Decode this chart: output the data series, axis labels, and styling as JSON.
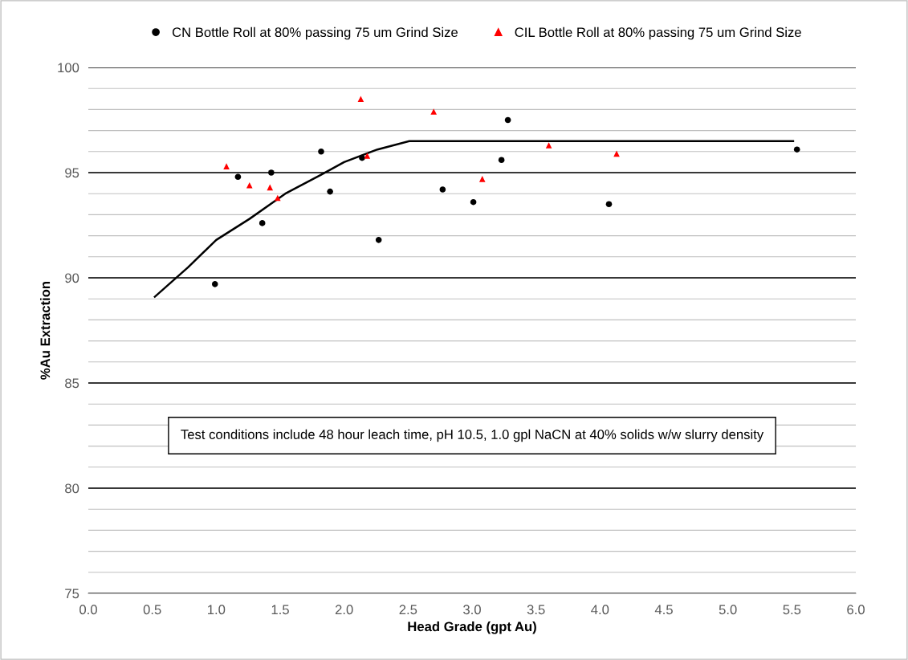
{
  "chart_data": {
    "type": "scatter",
    "xlabel": "Head Grade (gpt Au)",
    "ylabel": "%Au Extraction",
    "xlim": [
      0,
      6
    ],
    "xticks": [
      {
        "value": 0,
        "label": "0.0"
      },
      {
        "value": 0.5,
        "label": "0.5"
      },
      {
        "value": 1,
        "label": "1.0"
      },
      {
        "value": 1.5,
        "label": "1.5"
      },
      {
        "value": 2,
        "label": "2.0"
      },
      {
        "value": 2.5,
        "label": "2.5"
      },
      {
        "value": 3,
        "label": "3.0"
      },
      {
        "value": 3.5,
        "label": "3.5"
      },
      {
        "value": 4,
        "label": "4.0"
      },
      {
        "value": 4.5,
        "label": "4.5"
      },
      {
        "value": 5,
        "label": "5.0"
      },
      {
        "value": 5.5,
        "label": "5.5"
      },
      {
        "value": 6,
        "label": "6.0"
      }
    ],
    "ylim": [
      75,
      100
    ],
    "yticks": [
      75,
      80,
      85,
      90,
      95,
      100
    ],
    "grid": "y",
    "legend": "top",
    "series": [
      {
        "name": "CN Bottle Roll at 80% passing 75 um Grind Size",
        "marker": "circle",
        "color": "#000000",
        "x": [
          0.99,
          1.17,
          1.36,
          1.43,
          1.82,
          1.89,
          2.14,
          2.27,
          2.77,
          3.01,
          3.23,
          3.28,
          4.07,
          5.54
        ],
        "values": [
          89.7,
          94.8,
          92.6,
          95.0,
          96.0,
          94.1,
          95.7,
          91.8,
          94.2,
          93.6,
          95.6,
          97.5,
          93.5,
          96.1
        ]
      },
      {
        "name": "CIL Bottle Roll at 80% passing 75 um Grind Size",
        "marker": "triangle",
        "color": "#ff0000",
        "x": [
          1.08,
          1.26,
          1.42,
          1.48,
          2.13,
          2.18,
          2.7,
          3.08,
          3.6,
          4.13
        ],
        "values": [
          95.3,
          94.4,
          94.3,
          93.8,
          98.5,
          95.8,
          97.9,
          94.7,
          96.3,
          95.9
        ]
      },
      {
        "type": "line",
        "marker": "none",
        "color": "#000000",
        "x": [
          0.52,
          0.78,
          1.0,
          1.26,
          1.54,
          1.82,
          2.0,
          2.26,
          2.51,
          5.51
        ],
        "values": [
          89.1,
          90.5,
          91.8,
          92.8,
          94.0,
          94.9,
          95.5,
          96.1,
          96.5,
          96.5
        ]
      }
    ],
    "annotations": [
      "Test conditions include 48 hour leach time, pH 10.5, 1.0 gpl NaCN at 40% solids w/w slurry density"
    ]
  }
}
